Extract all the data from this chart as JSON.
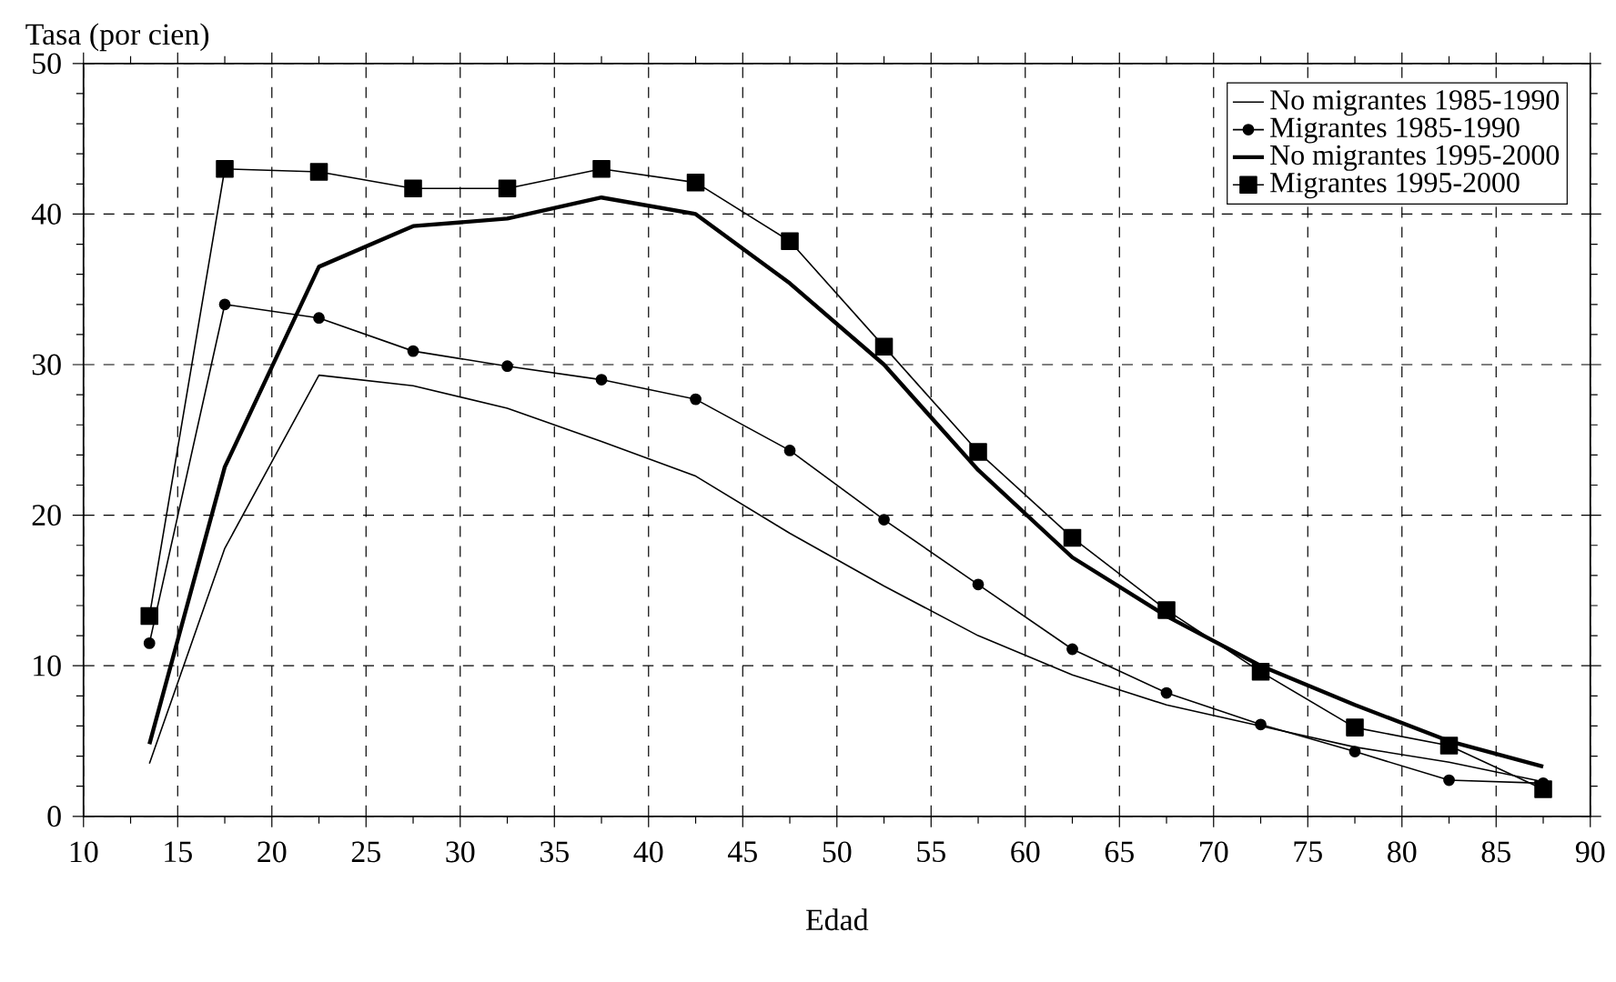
{
  "chart_data": {
    "type": "line",
    "ylabel": "Tasa (por cien)",
    "xlabel": "Edad",
    "x": [
      13.5,
      17.5,
      22.5,
      27.5,
      32.5,
      37.5,
      42.5,
      47.5,
      52.5,
      57.5,
      62.5,
      67.5,
      72.5,
      77.5,
      82.5,
      87.5
    ],
    "series": [
      {
        "name": "No migrantes 1985-1990",
        "color": "#000000",
        "marker": "none",
        "values": [
          3.5,
          17.8,
          29.3,
          28.6,
          27.1,
          24.9,
          22.6,
          18.8,
          15.3,
          12.0,
          9.4,
          7.4,
          6.0,
          4.6,
          3.6,
          2.3
        ]
      },
      {
        "name": "Migrantes 1985-1990",
        "color": "#000000",
        "marker": "circle",
        "values": [
          11.5,
          34.0,
          33.1,
          30.9,
          29.9,
          29.0,
          27.7,
          24.3,
          19.7,
          15.4,
          11.1,
          8.2,
          6.1,
          4.3,
          2.4,
          2.2
        ]
      },
      {
        "name": "No migrantes 1995-2000",
        "color": "#000000",
        "marker": "none",
        "values": [
          4.8,
          23.2,
          36.5,
          39.2,
          39.7,
          41.1,
          40.0,
          35.4,
          30.0,
          23.0,
          17.2,
          13.3,
          10.0,
          7.4,
          5.0,
          3.3
        ]
      },
      {
        "name": "Migrantes 1995-2000",
        "color": "#000000",
        "marker": "square",
        "values": [
          13.3,
          43.0,
          42.8,
          41.7,
          41.7,
          43.0,
          42.1,
          38.2,
          31.2,
          24.2,
          18.5,
          13.7,
          9.6,
          5.9,
          4.7,
          1.8
        ]
      }
    ],
    "xlim": [
      10,
      90
    ],
    "xticks": [
      10,
      15,
      20,
      25,
      30,
      35,
      40,
      45,
      50,
      55,
      60,
      65,
      70,
      75,
      80,
      85,
      90
    ],
    "ylim": [
      0,
      50
    ],
    "yticks": [
      0,
      10,
      20,
      30,
      40,
      50
    ],
    "grid": true,
    "legend": "top right",
    "line_style": "solid"
  }
}
